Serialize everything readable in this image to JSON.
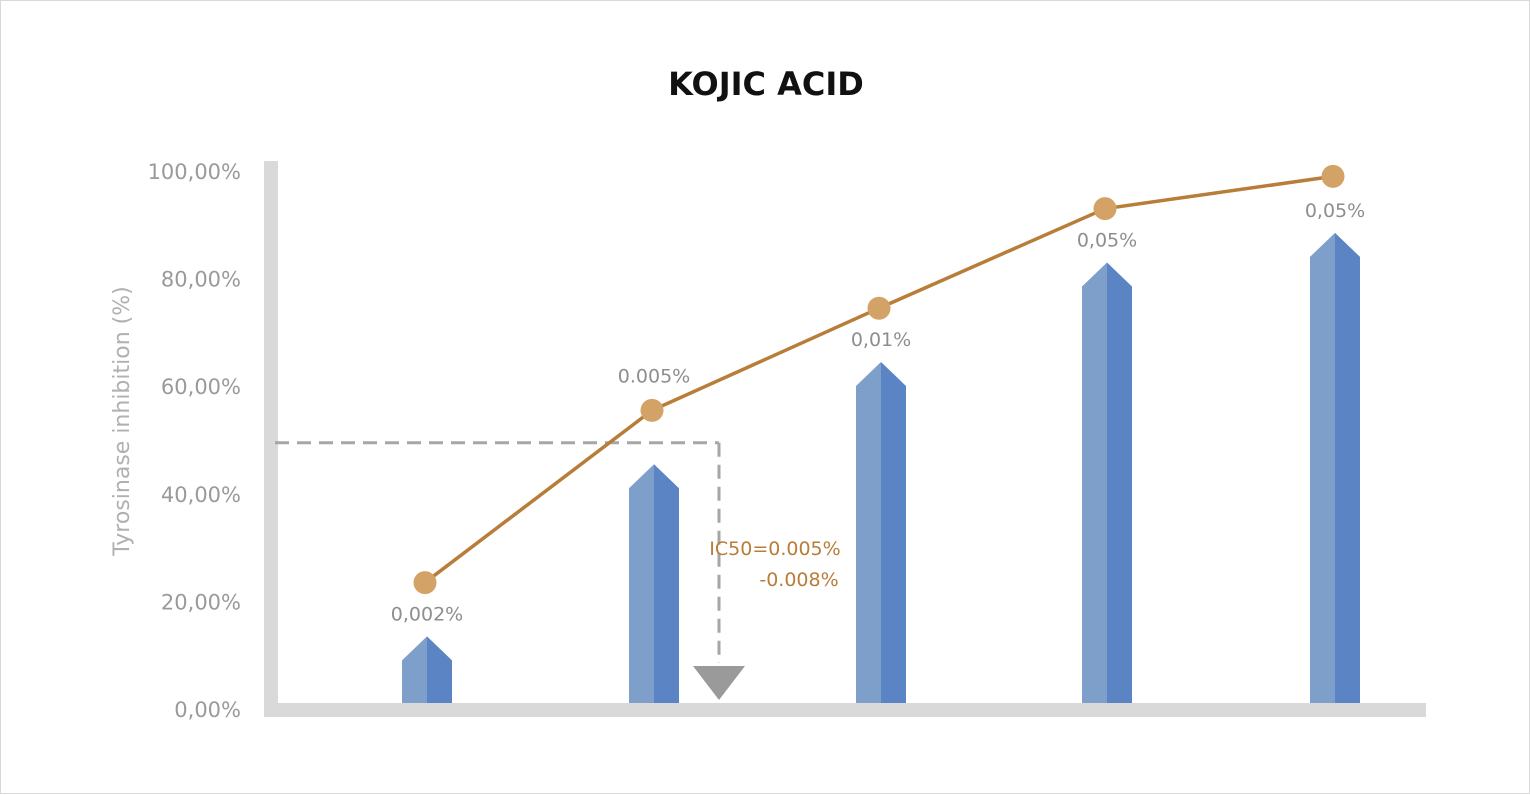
{
  "chart_data": {
    "type": "bar",
    "title": "KOJIC ACID",
    "ylabel": "Tyrosinase inhibition (%)",
    "ylim": [
      0,
      100
    ],
    "yticks": [
      "0,00%",
      "20,00%",
      "40,00%",
      "60,00%",
      "80,00%",
      "100,00%"
    ],
    "categories": [
      "0,002%",
      "0.005%",
      "0,01%",
      "0,05%",
      "0,05%"
    ],
    "series": [
      {
        "type": "bar",
        "values": [
          13.5,
          45.5,
          64.5,
          83,
          88.5
        ],
        "color": "#5a84c4",
        "highlight": "#7f9fcb"
      },
      {
        "type": "line",
        "values": [
          23.5,
          55.5,
          74.5,
          93,
          99
        ],
        "color": "#b87d38",
        "marker_color": "#d3a266"
      }
    ],
    "annotation": {
      "lines": [
        "IC50=0.005%",
        "-0.008%"
      ],
      "guide_y": 49.5,
      "color": "#b87d38",
      "guide_color": "#a6a6a6"
    },
    "grid": false,
    "legend": "none"
  }
}
